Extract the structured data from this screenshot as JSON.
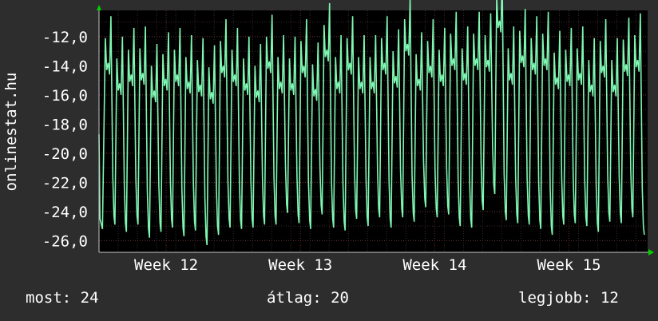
{
  "chart_data": {
    "type": "line",
    "ylabel": "onlinestat.hu",
    "xlabel": "",
    "title": "",
    "ylim": [
      -26.8,
      -10.2
    ],
    "yticks": [
      -12.0,
      -14.0,
      -16.0,
      -18.0,
      -20.0,
      -22.0,
      -24.0,
      -26.0
    ],
    "yticklabels": [
      "-12,0",
      "-14,0",
      "-16,0",
      "-18,0",
      "-20,0",
      "-22,0",
      "-24,0",
      "-26,0"
    ],
    "xlim": [
      0,
      28.6
    ],
    "xticks": [
      3.5,
      10.5,
      17.5,
      24.5
    ],
    "xticklabels": [
      "Week 12",
      "Week 13",
      "Week 14",
      "Week 15"
    ],
    "grid": true,
    "series": [
      {
        "highs": [
          -14.6,
          -16.0,
          -15.4,
          -15.3,
          -16.5,
          -15.7,
          -15.4,
          -15.9,
          -16.1,
          -16.6,
          -14.8,
          -15.4,
          -16.0,
          -16.5,
          -14.5,
          -15.9,
          -16.0,
          -14.8,
          -16.4,
          -13.7,
          -15.9,
          -14.6,
          -15.9,
          -15.9,
          -14.6,
          -15.5,
          -13.3,
          -15.7,
          -14.8,
          -15.4,
          -14.3,
          -15.3,
          -14.3,
          -14.4,
          -11.7,
          -15.3,
          -14.1,
          -14.6,
          -14.3,
          -15.6,
          -15.4,
          -15.3,
          -16.1,
          -14.8,
          -16.1,
          -14.7,
          -14.4
        ],
        "lows": [
          -24.9,
          -25.4,
          -24.9,
          -25.8,
          -25.4,
          -25.1,
          -25.7,
          -25.3,
          -26.3,
          -25.6,
          -25.1,
          -25.2,
          -25.1,
          -24.9,
          -24.9,
          -24.1,
          -24.8,
          -25.2,
          -24.2,
          -25.1,
          -25.3,
          -24.5,
          -25.0,
          -24.4,
          -25.1,
          -24.4,
          -24.7,
          -23.7,
          -24.4,
          -24.2,
          -25.0,
          -25.1,
          -23.9,
          -22.8,
          -24.6,
          -24.8,
          -24.9,
          -25.2,
          -25.6,
          -24.9,
          -24.8,
          -25.0,
          -25.4,
          -24.7,
          -24.8,
          -24.4,
          -25.6
        ]
      }
    ]
  },
  "stats": {
    "now": "most: 24",
    "avg": "átlag: 20",
    "best": "legjobb: 12"
  }
}
